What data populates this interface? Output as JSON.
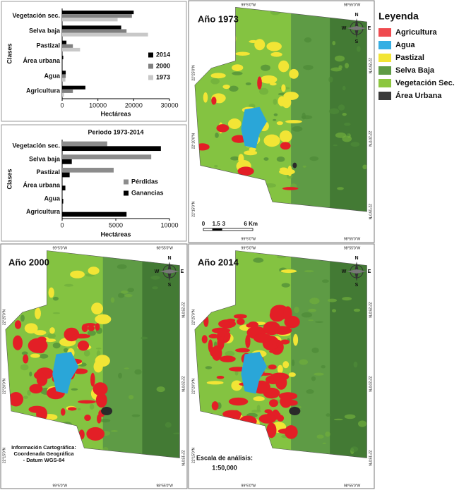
{
  "chart_data": [
    {
      "type": "hbar",
      "ylabel": "Clases",
      "xlabel": "Hectáreas",
      "categories": [
        "Vegetación sec.",
        "Selva baja",
        "Pastizal",
        "Área urbana",
        "Agua",
        "Agricultura"
      ],
      "series": [
        {
          "name": "2014",
          "color": "#000000",
          "values": [
            20000,
            16500,
            1200,
            300,
            1000,
            6500
          ]
        },
        {
          "name": "2000",
          "color": "#808080",
          "values": [
            19500,
            18000,
            3000,
            200,
            1000,
            3000
          ]
        },
        {
          "name": "1973",
          "color": "#c8c8c8",
          "values": [
            15500,
            24000,
            5000,
            0,
            900,
            500
          ]
        }
      ],
      "xlim": [
        0,
        30000
      ],
      "xticks": [
        0,
        10000,
        20000,
        30000
      ]
    },
    {
      "type": "hbar",
      "title": "Periodo 1973-2014",
      "ylabel": "Clases",
      "xlabel": "Hectáreas",
      "categories": [
        "Vegetación sec.",
        "Selva baja",
        "Pastizal",
        "Área urbana",
        "Agua",
        "Agricultura"
      ],
      "series": [
        {
          "name": "Pérdidas",
          "color": "#8c8c8c",
          "values": [
            4200,
            8300,
            4800,
            0,
            0,
            0
          ]
        },
        {
          "name": "Ganancias",
          "color": "#000000",
          "values": [
            9200,
            900,
            700,
            300,
            100,
            6000
          ]
        }
      ],
      "xlim": [
        0,
        10000
      ],
      "xticks": [
        0,
        5000,
        10000
      ]
    }
  ],
  "legend": {
    "title": "Leyenda",
    "items": [
      {
        "name": "Agricultura",
        "color": "#ef4a4f"
      },
      {
        "name": "Agua",
        "color": "#35aee3"
      },
      {
        "name": "Pastizal",
        "color": "#f2e535"
      },
      {
        "name": "Selva Baja",
        "color": "#5e9b45"
      },
      {
        "name": "Vegetación Sec.",
        "color": "#8cc63f"
      },
      {
        "name": "Área Urbana",
        "color": "#3a3a3a"
      }
    ]
  },
  "compass": [
    "N",
    "E",
    "S",
    "W"
  ],
  "maps": [
    {
      "title": "Año 1973",
      "top_labels": [
        "99°5'0\"W",
        "98°55'0\"W"
      ],
      "bottom_labels": [
        "99°5'0\"W",
        "98°55'0\"W"
      ],
      "left_labels": [
        "22°25'0\"N",
        "22°20'0\"N",
        "22°15'0\"N"
      ],
      "right_labels": [
        "22°25'0\"N",
        "22°20'0\"N",
        "22°15'0\"N"
      ],
      "scale": [
        "0",
        "1.5",
        "3",
        "6 Km"
      ]
    },
    {
      "title": "Año 2000",
      "top_labels": [
        "99°5'0\"W",
        "98°55'0\"W"
      ],
      "bottom_labels": [
        "99°5'0\"W",
        "98°55'0\"W"
      ],
      "left_labels": [
        "22°25'0\"N",
        "22°20'0\"N",
        "22°15'0\"N"
      ],
      "right_labels": [
        "22°25'0\"N",
        "22°20'0\"N",
        "22°15'0\"N"
      ],
      "notes": [
        "Información Cartográfica:",
        "Coordenada Geográfica",
        "- Datum WGS-84"
      ]
    },
    {
      "title": "Año 2014",
      "top_labels": [
        "99°5'0\"W",
        "98°55'0\"W"
      ],
      "bottom_labels": [
        "99°5'0\"W",
        "98°55'0\"W"
      ],
      "left_labels": [
        "22°25'0\"N",
        "22°20'0\"N",
        "22°15'0\"N"
      ],
      "right_labels": [
        "22°25'0\"N",
        "22°20'0\"N",
        "22°15'0\"N"
      ],
      "notes": [
        "Escala de análisis:",
        "1:50,000"
      ]
    }
  ]
}
